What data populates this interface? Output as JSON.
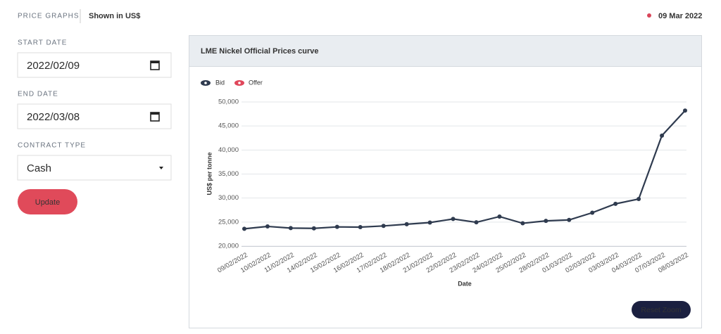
{
  "header": {
    "title": "PRICE GRAPHS",
    "currency": "Shown in US$",
    "date": "09 Mar 2022"
  },
  "form": {
    "start_label": "START DATE",
    "start_value": "2022/02/09",
    "end_label": "END DATE",
    "end_value": "2022/03/08",
    "contract_label": "CONTRACT TYPE",
    "contract_value": "Cash",
    "button": "Update"
  },
  "chart_data": {
    "type": "line",
    "title": "LME Nickel Official Prices curve",
    "x_label": "Date",
    "y_label": "US$ per tonne",
    "categories": [
      "09/02/2022",
      "10/02/2022",
      "11/02/2022",
      "14/02/2022",
      "15/02/2022",
      "16/02/2022",
      "17/02/2022",
      "18/02/2022",
      "21/02/2022",
      "22/02/2022",
      "23/02/2022",
      "24/02/2022",
      "25/02/2022",
      "28/02/2022",
      "01/03/2022",
      "02/03/2022",
      "03/03/2022",
      "04/03/2022",
      "07/03/2022",
      "08/03/2022"
    ],
    "series": [
      {
        "name": "Bid",
        "color": "#2f3b4f",
        "values": [
          23600,
          24100,
          23750,
          23700,
          24000,
          23950,
          24200,
          24550,
          24900,
          25650,
          24950,
          26150,
          24750,
          25250,
          25450,
          26950,
          28800,
          29800,
          43000,
          48200
        ]
      }
    ],
    "inactive_series": [
      {
        "name": "Offer",
        "color": "#e0475b"
      }
    ],
    "ylim": [
      20000,
      50000
    ],
    "yticks": [
      {
        "value": 20000,
        "label": "20,000"
      },
      {
        "value": 25000,
        "label": "25,000"
      },
      {
        "value": 30000,
        "label": "30,000"
      },
      {
        "value": 35000,
        "label": "35,000"
      },
      {
        "value": 40000,
        "label": "40,000"
      },
      {
        "value": 45000,
        "label": "45,000"
      },
      {
        "value": 50000,
        "label": "50,000"
      }
    ],
    "grid": true,
    "reset_button": "Reset Zoom"
  }
}
